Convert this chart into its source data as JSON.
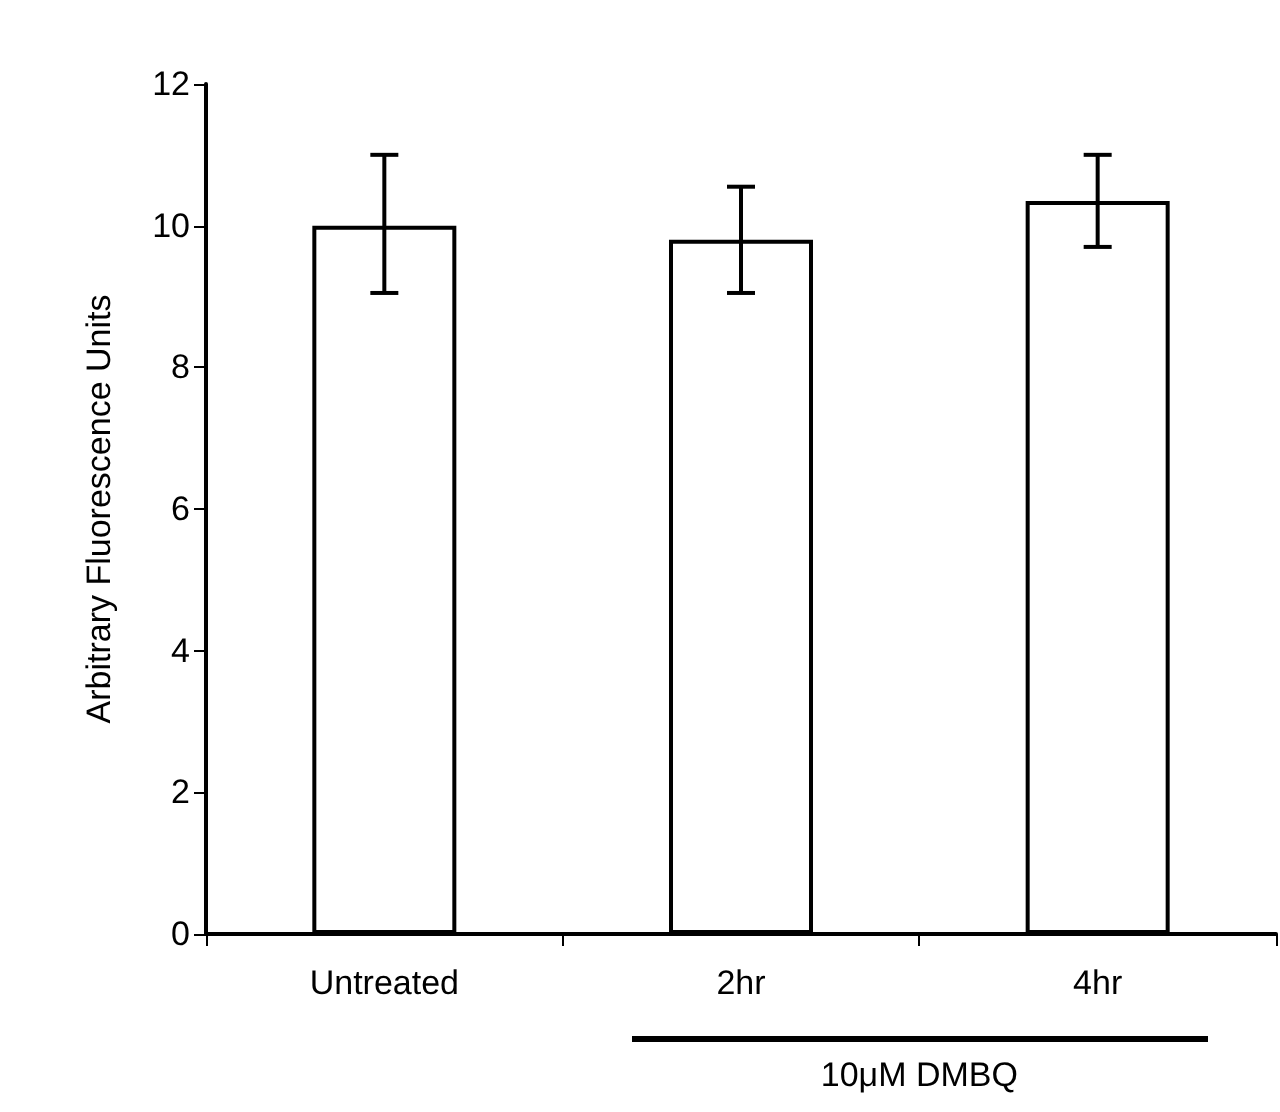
{
  "chart_data": {
    "type": "bar",
    "ylabel": "Arbitrary Fluorescence Units",
    "categories": [
      "Untreated",
      "2hr",
      "4hr"
    ],
    "values": [
      10.0,
      9.8,
      10.35
    ],
    "errors": [
      [
        9.05,
        11.0
      ],
      [
        9.05,
        10.55
      ],
      [
        9.7,
        11.0
      ]
    ],
    "color": "#ffffff",
    "ylim": [
      0,
      12
    ],
    "yticks": [
      0,
      2,
      4,
      6,
      8,
      10,
      12
    ],
    "grid": false,
    "annotations": [
      "10μM DMBQ"
    ]
  }
}
